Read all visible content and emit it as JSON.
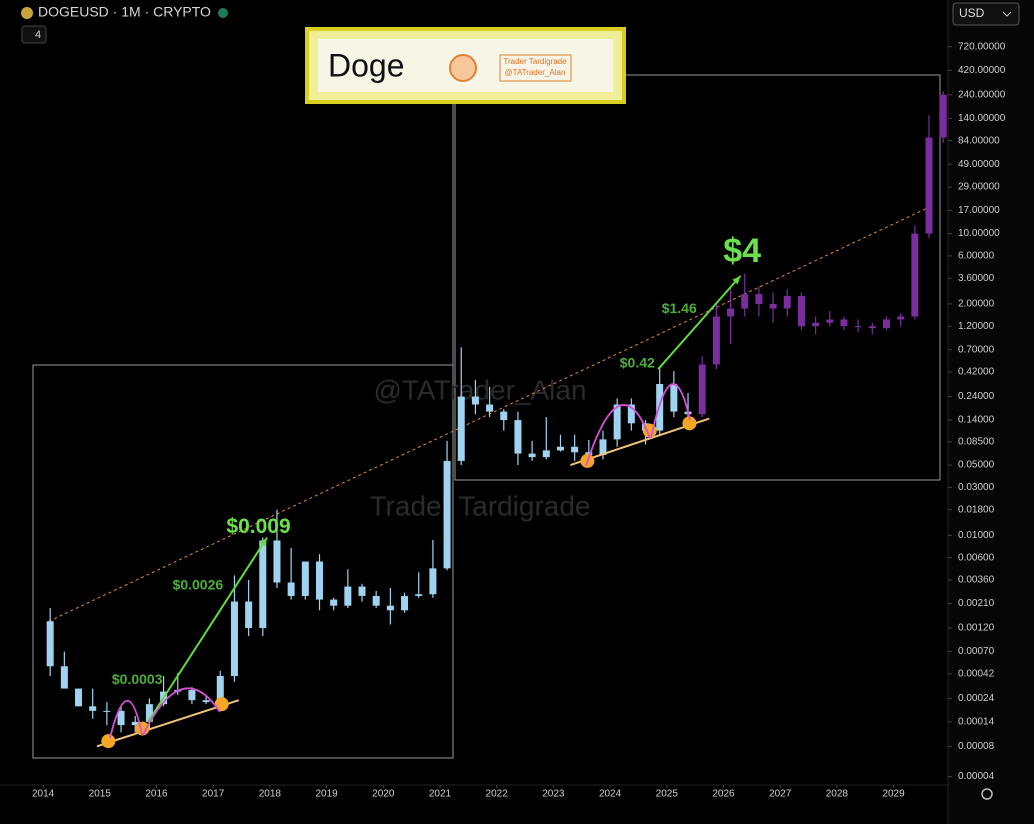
{
  "header": {
    "title": "DOGEUSD · 1M · CRYPTO",
    "interval_count": "4",
    "currency": "USD"
  },
  "legend_box": {
    "title": "Doge",
    "line1": "Trader Tardigrade",
    "line2": "@TATrader_Alan"
  },
  "watermarks": [
    "@TATrader_Alan",
    "Trader Tardigrade"
  ],
  "chart_data": {
    "type": "candlestick",
    "log_scale": true,
    "xlim": [
      2013.24,
      2029.96
    ],
    "xticks": [
      {
        "value": 2014,
        "label": "2014"
      },
      {
        "value": 2015,
        "label": "2015"
      },
      {
        "value": 2016,
        "label": "2016"
      },
      {
        "value": 2017,
        "label": "2017"
      },
      {
        "value": 2018,
        "label": "2018"
      },
      {
        "value": 2019,
        "label": "2019"
      },
      {
        "value": 2020,
        "label": "2020"
      },
      {
        "value": 2021,
        "label": "2021"
      },
      {
        "value": 2022,
        "label": "2022"
      },
      {
        "value": 2023,
        "label": "2023"
      },
      {
        "value": 2024,
        "label": "2024"
      },
      {
        "value": 2025,
        "label": "2025"
      },
      {
        "value": 2026,
        "label": "2026"
      },
      {
        "value": 2027,
        "label": "2027"
      },
      {
        "value": 2028,
        "label": "2028"
      },
      {
        "value": 2029,
        "label": "2029"
      }
    ],
    "ylim": [
      3.3e-05,
      2100
    ],
    "yticks": [
      {
        "value": 720,
        "label": "720.00000"
      },
      {
        "value": 420,
        "label": "420.00000"
      },
      {
        "value": 240,
        "label": "240.00000"
      },
      {
        "value": 140,
        "label": "140.00000"
      },
      {
        "value": 84,
        "label": "84.00000"
      },
      {
        "value": 49,
        "label": "49.00000"
      },
      {
        "value": 29,
        "label": "29.00000"
      },
      {
        "value": 17,
        "label": "17.00000"
      },
      {
        "value": 10,
        "label": "10.00000"
      },
      {
        "value": 6,
        "label": "6.00000"
      },
      {
        "value": 3.6,
        "label": "3.60000"
      },
      {
        "value": 2,
        "label": "2.00000"
      },
      {
        "value": 1.2,
        "label": "1.20000"
      },
      {
        "value": 0.7,
        "label": "0.70000"
      },
      {
        "value": 0.42,
        "label": "0.42000"
      },
      {
        "value": 0.24,
        "label": "0.24000"
      },
      {
        "value": 0.14,
        "label": "0.14000"
      },
      {
        "value": 0.085,
        "label": "0.08500"
      },
      {
        "value": 0.05,
        "label": "0.05000"
      },
      {
        "value": 0.03,
        "label": "0.03000"
      },
      {
        "value": 0.018,
        "label": "0.01800"
      },
      {
        "value": 0.01,
        "label": "0.01000"
      },
      {
        "value": 0.006,
        "label": "0.00600"
      },
      {
        "value": 0.0036,
        "label": "0.00360"
      },
      {
        "value": 0.0021,
        "label": "0.00210"
      },
      {
        "value": 0.0012,
        "label": "0.00120"
      },
      {
        "value": 0.0007,
        "label": "0.00070"
      },
      {
        "value": 0.00042,
        "label": "0.00042"
      },
      {
        "value": 0.00024,
        "label": "0.00024"
      },
      {
        "value": 0.00014,
        "label": "0.00014"
      },
      {
        "value": 8e-05,
        "label": "0.00008"
      },
      {
        "value": 4e-05,
        "label": "0.00004"
      }
    ],
    "series": [
      {
        "color": "#9fd3f0",
        "x": [
          2014.125,
          2014.375,
          2014.625,
          2014.875,
          2015.125,
          2015.375,
          2015.625,
          2015.875,
          2016.125,
          2016.375,
          2016.625,
          2016.875,
          2017.125,
          2017.375,
          2017.625,
          2017.875,
          2018.125,
          2018.375,
          2018.625,
          2018.875,
          2019.125,
          2019.375,
          2019.625,
          2019.875,
          2020.125,
          2020.375,
          2020.625,
          2020.875,
          2021.125,
          2021.375,
          2021.625,
          2021.875,
          2022.125,
          2022.375,
          2022.625,
          2022.875,
          2023.125,
          2023.375,
          2023.625,
          2023.875,
          2024.125,
          2024.375,
          2024.625,
          2024.875,
          2025.125,
          2025.375
        ],
        "open": [
          0.0014,
          0.0005,
          0.0003,
          0.0002,
          0.00018,
          0.00018,
          0.00013,
          0.00014,
          0.00021,
          0.00028,
          0.00029,
          0.00023,
          0.00022,
          0.0004,
          0.0022,
          0.0012,
          0.0089,
          0.0034,
          0.0025,
          0.0055,
          0.0023,
          0.002,
          0.0031,
          0.0025,
          0.002,
          0.0018,
          0.0025,
          0.0026,
          0.0047,
          0.055,
          0.24,
          0.2,
          0.17,
          0.14,
          0.065,
          0.06,
          0.07,
          0.076,
          0.067,
          0.063,
          0.09,
          0.2,
          0.13,
          0.11,
          0.32,
          0.17
        ],
        "high": [
          0.0019,
          0.0007,
          0.0003,
          0.0003,
          0.00022,
          0.0002,
          0.00016,
          0.00024,
          0.0004,
          0.00043,
          0.00031,
          0.00026,
          0.00045,
          0.004,
          0.0036,
          0.0095,
          0.018,
          0.0075,
          0.0033,
          0.0065,
          0.0024,
          0.0046,
          0.0033,
          0.0028,
          0.003,
          0.0027,
          0.0043,
          0.009,
          0.087,
          0.74,
          0.35,
          0.3,
          0.18,
          0.17,
          0.087,
          0.15,
          0.1,
          0.1,
          0.089,
          0.11,
          0.23,
          0.23,
          0.14,
          0.48,
          0.43,
          0.26
        ],
        "low": [
          0.0004,
          0.0003,
          0.0002,
          0.00015,
          0.00013,
          0.00011,
          0.00011,
          0.00012,
          0.0002,
          0.00026,
          0.00021,
          0.00021,
          0.0002,
          0.00035,
          0.001,
          0.001,
          0.003,
          0.0023,
          0.0023,
          0.0018,
          0.0018,
          0.0019,
          0.0022,
          0.0019,
          0.0013,
          0.0017,
          0.0024,
          0.0024,
          0.0045,
          0.05,
          0.16,
          0.15,
          0.11,
          0.05,
          0.055,
          0.057,
          0.068,
          0.055,
          0.055,
          0.057,
          0.076,
          0.11,
          0.08,
          0.1,
          0.15,
          0.14
        ],
        "close": [
          0.0005,
          0.0003,
          0.0002,
          0.00018,
          0.00018,
          0.00013,
          0.00014,
          0.00021,
          0.00028,
          0.00029,
          0.00023,
          0.00022,
          0.0004,
          0.0022,
          0.0012,
          0.0089,
          0.0034,
          0.0025,
          0.0055,
          0.0023,
          0.002,
          0.0031,
          0.0025,
          0.002,
          0.0018,
          0.0025,
          0.0026,
          0.0047,
          0.055,
          0.24,
          0.2,
          0.17,
          0.14,
          0.065,
          0.06,
          0.07,
          0.076,
          0.067,
          0.063,
          0.09,
          0.2,
          0.13,
          0.11,
          0.32,
          0.17,
          0.16
        ]
      },
      {
        "color": "#7a2e9e",
        "x": [
          2025.625,
          2025.875,
          2026.125,
          2026.375,
          2026.625,
          2026.875,
          2027.125,
          2027.375,
          2027.625,
          2027.875,
          2028.125,
          2028.375,
          2028.625,
          2028.875,
          2029.125,
          2029.375,
          2029.625,
          2029.875
        ],
        "open": [
          0.16,
          0.5,
          1.5,
          1.8,
          2.5,
          2,
          1.8,
          2.4,
          1.2,
          1.3,
          1.4,
          1.2,
          1.2,
          1.15,
          1.4,
          1.5,
          10,
          90
        ],
        "high": [
          0.6,
          2,
          3,
          4,
          3,
          2.6,
          2.8,
          2.6,
          1.5,
          1.7,
          1.5,
          1.4,
          1.3,
          1.5,
          1.6,
          12,
          150,
          260
        ],
        "low": [
          0.15,
          0.45,
          0.8,
          1.5,
          1.5,
          1.3,
          1.5,
          1.1,
          1,
          1.2,
          1.1,
          1.05,
          1,
          1.1,
          1.2,
          1.4,
          9,
          80
        ],
        "close": [
          0.5,
          1.5,
          1.8,
          2.5,
          2,
          1.8,
          2.4,
          1.2,
          1.3,
          1.4,
          1.2,
          1.2,
          1.15,
          1.4,
          1.5,
          10,
          90,
          240
        ]
      }
    ],
    "trendline": {
      "color": "#e08a3c",
      "x": [
        2014.1,
        2029.6
      ],
      "y": [
        0.0014,
        18
      ]
    },
    "support_lines": [
      {
        "color": "#f0c27a",
        "x": [
          2014.95,
          2017.45
        ],
        "y": [
          8e-05,
          0.00023
        ]
      },
      {
        "color": "#f0c27a",
        "x": [
          2023.3,
          2025.75
        ],
        "y": [
          0.05,
          0.145
        ]
      }
    ],
    "support_points": {
      "color": "#f5a623",
      "x": [
        2015.15,
        2015.75,
        2017.15,
        2023.6,
        2024.7,
        2025.4
      ],
      "y": [
        9e-05,
        0.00012,
        0.00021,
        0.055,
        0.11,
        0.13
      ]
    },
    "arrows": [
      {
        "color": "#5fdc3c",
        "x": [
          2015.85,
          2017.95
        ],
        "y": [
          0.00014,
          0.0095
        ]
      },
      {
        "color": "#5fdc3c",
        "x": [
          2024.85,
          2026.3
        ],
        "y": [
          0.45,
          3.8
        ]
      }
    ],
    "annotations": [
      {
        "label": "$0.009",
        "value": 0.009,
        "x": 2017.8,
        "size": "big"
      },
      {
        "label": "$0.0026",
        "value": 0.0026,
        "x": 2016.73,
        "size": "small"
      },
      {
        "label": "$0.0003",
        "value": 0.0003,
        "x": 2015.66,
        "size": "small"
      },
      {
        "label": "$0.42",
        "value": 0.42,
        "x": 2024.48,
        "size": "small"
      },
      {
        "label": "$1.46",
        "value": 1.46,
        "x": 2025.22,
        "size": "small"
      },
      {
        "label": "$4",
        "value": 4,
        "x": 2026.33,
        "size": "huge"
      }
    ]
  }
}
